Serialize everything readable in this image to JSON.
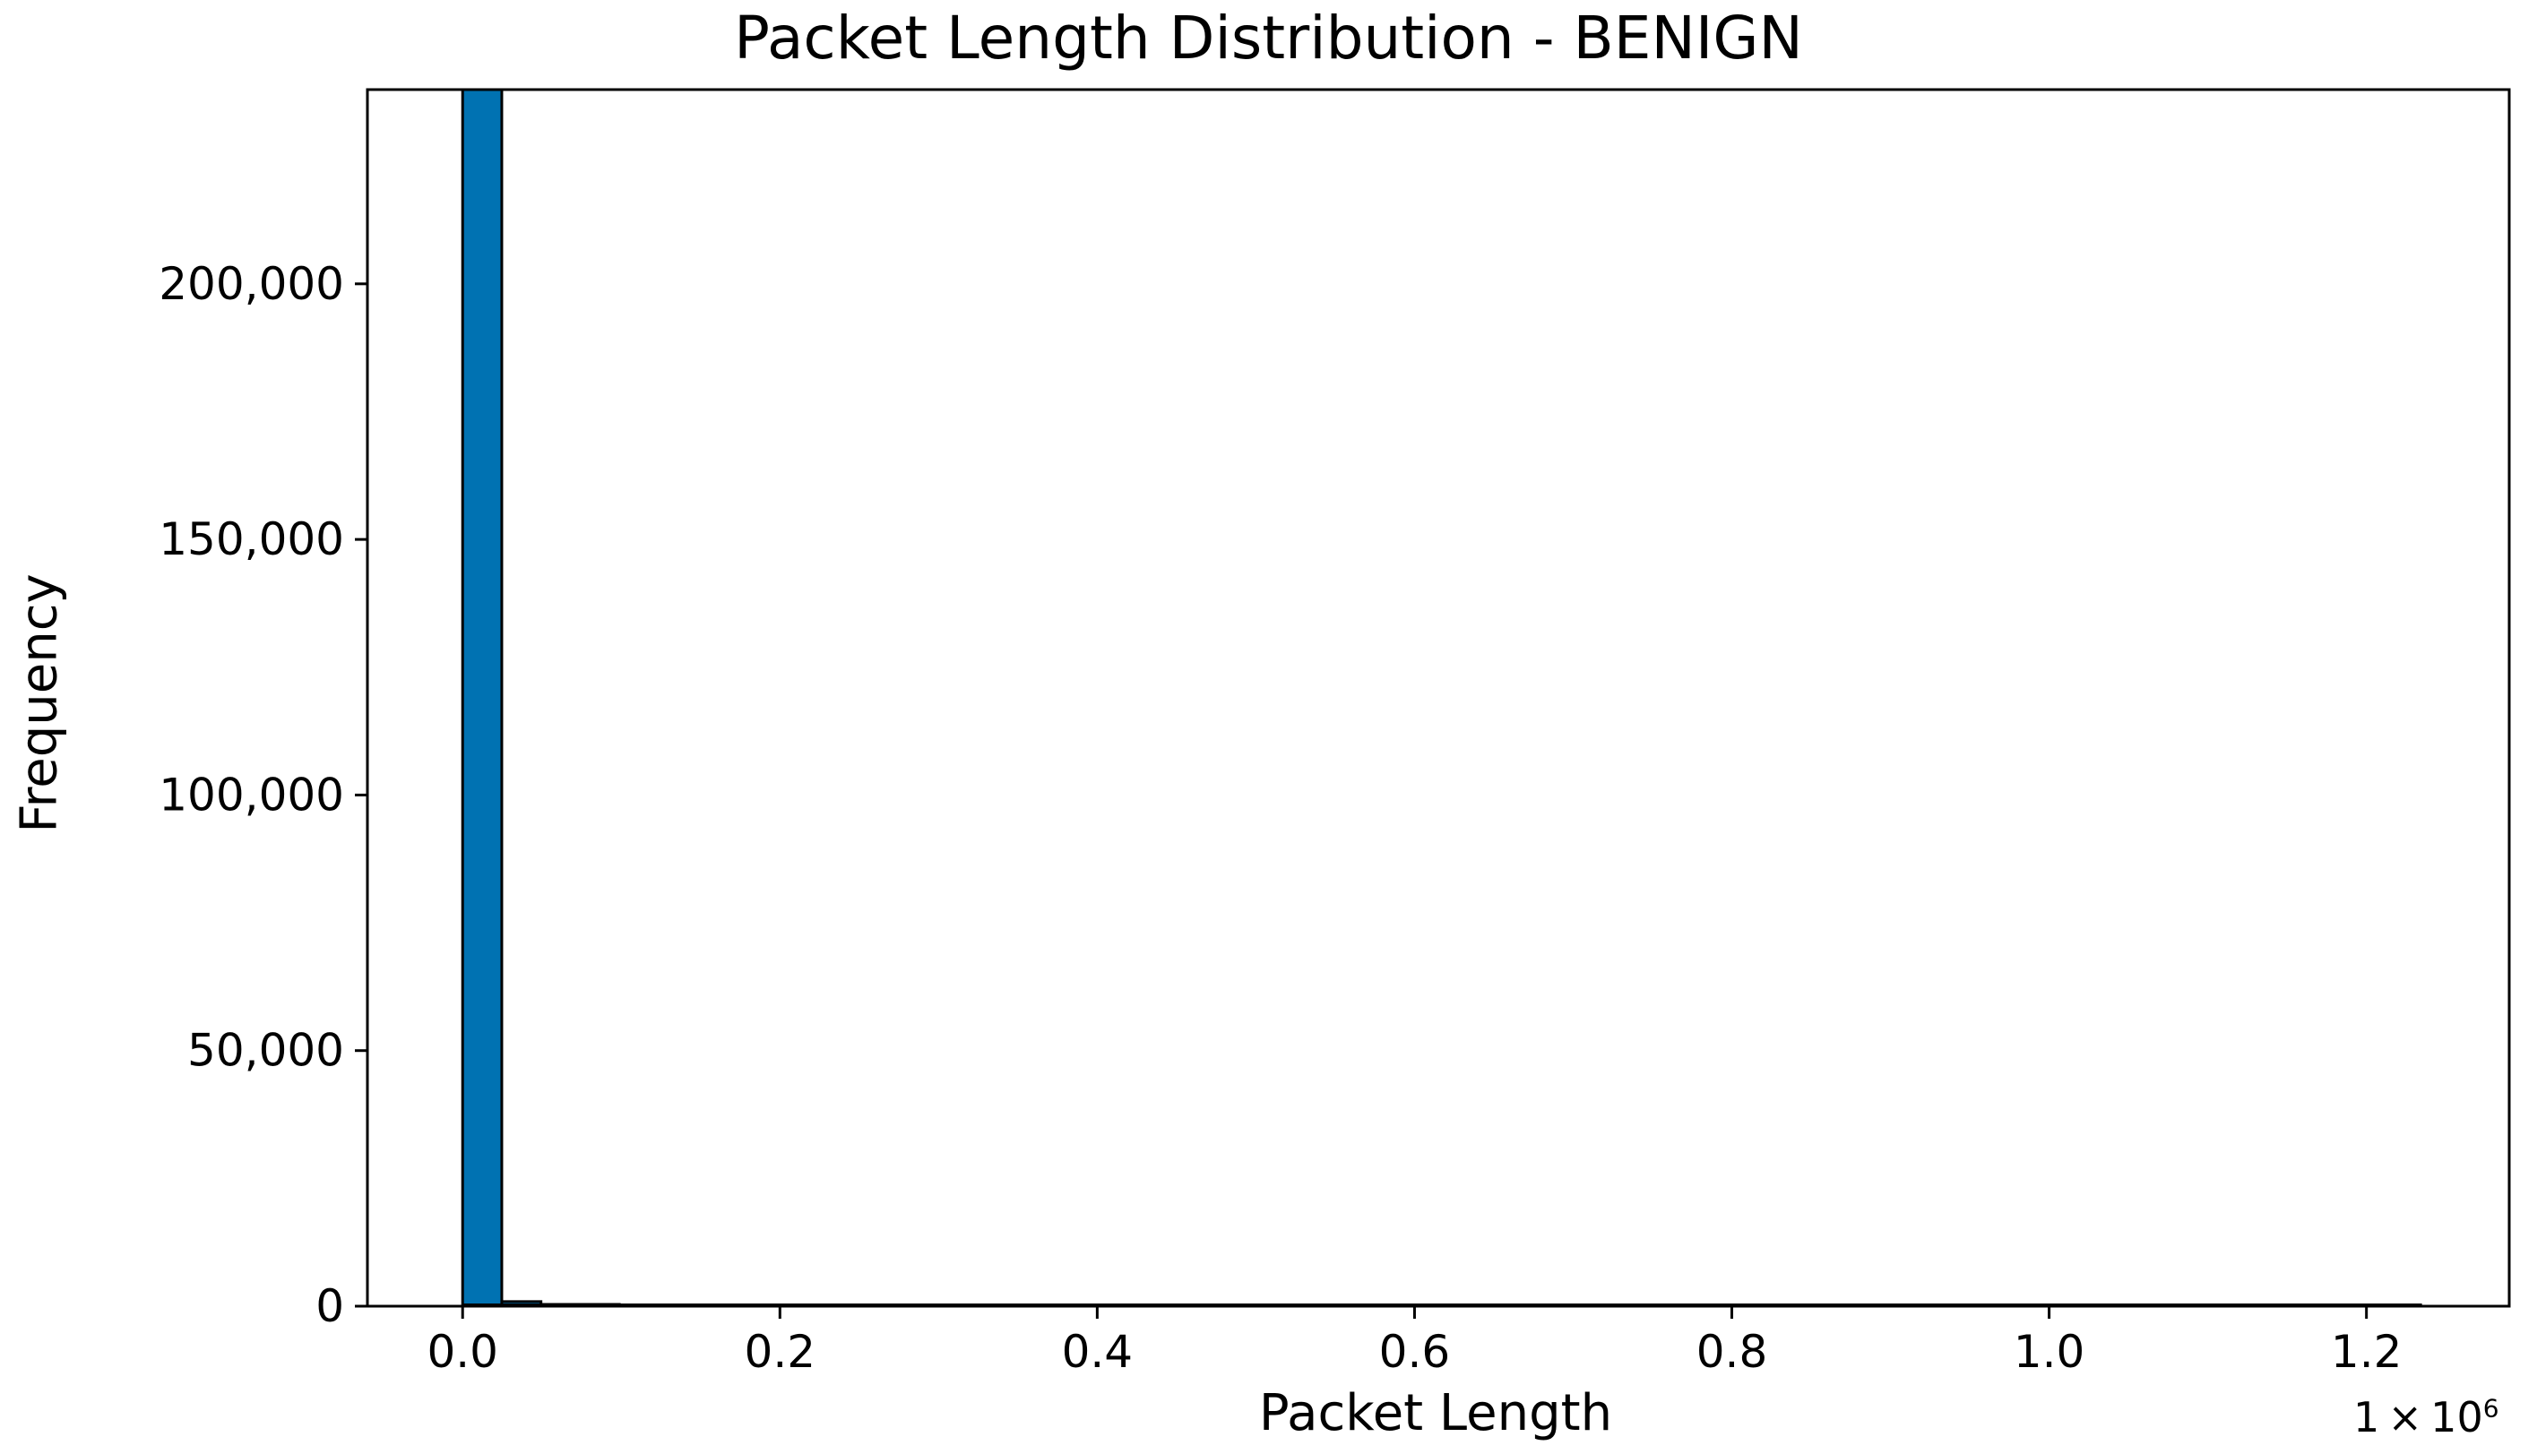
{
  "chart_data": {
    "type": "bar",
    "title": "Packet Length Distribution - BENIGN",
    "xlabel": "Packet Length",
    "ylabel": "Frequency",
    "x_offset_label": "1 × 10",
    "x_offset_exponent": "6",
    "xlim": [
      -0.06,
      1.29
    ],
    "ylim": [
      0,
      238000
    ],
    "x_ticks": [
      0.0,
      0.2,
      0.4,
      0.6,
      0.8,
      1.0,
      1.2
    ],
    "x_tick_labels": [
      "0.0",
      "0.2",
      "0.4",
      "0.6",
      "0.8",
      "1.0",
      "1.2"
    ],
    "y_ticks": [
      0,
      50000,
      100000,
      150000,
      200000
    ],
    "y_tick_labels": [
      "0",
      "50,000",
      "100,000",
      "150,000",
      "200,000"
    ],
    "bin_width": 0.0247,
    "bins": [
      {
        "x0": 0.0,
        "count": 238000
      },
      {
        "x0": 0.0247,
        "count": 900
      },
      {
        "x0": 0.0494,
        "count": 120
      },
      {
        "x0": 0.0741,
        "count": 30
      }
    ],
    "hist_extent": [
      0.0,
      1.235
    ],
    "bar_color": "#0072b2",
    "edge_color": "#000000",
    "grid": false
  }
}
